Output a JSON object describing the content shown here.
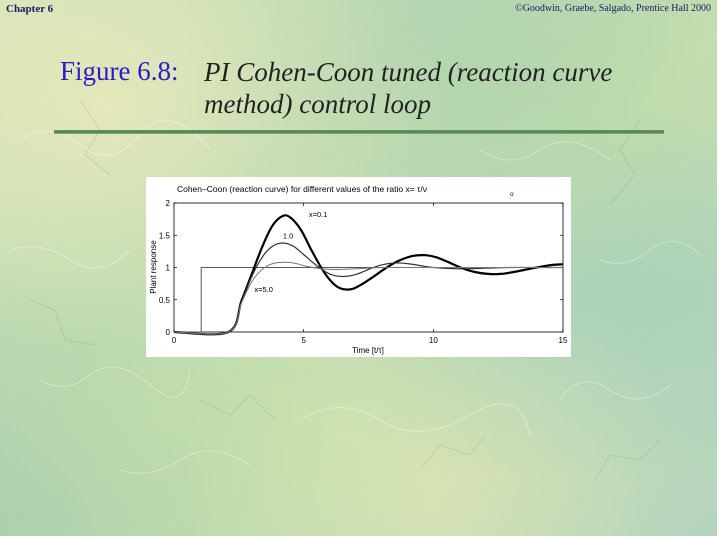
{
  "header": {
    "chapter": "Chapter 6",
    "copyright": "©Goodwin, Graebe, Salgado, Prentice Hall 2000"
  },
  "figure": {
    "label": "Figure 6.8:",
    "caption_line1": "PI Cohen-Coon tuned (reaction curve",
    "caption_line2": "method) control loop"
  },
  "colors": {
    "label": "#2a1cc8",
    "rule": "#4d7d4d"
  },
  "chart_data": {
    "type": "line",
    "title": "Cohen–Coon (reaction curve)  for different values of the ratio  x= τ/ν",
    "title_subscript": "o",
    "xlabel": "Time [t/τ]",
    "ylabel": "Plant response",
    "xlim": [
      0,
      15
    ],
    "ylim": [
      0,
      2
    ],
    "xticks": [
      0,
      5,
      10,
      15
    ],
    "xticklabels": [
      "0",
      "5",
      "10",
      "15"
    ],
    "yticks": [
      0,
      0.5,
      1,
      1.5,
      2
    ],
    "yticklabels": [
      "0",
      "0.5",
      "1",
      "1.5",
      "2"
    ],
    "grid": false,
    "series": [
      {
        "name": "setpoint",
        "color": "#555555",
        "width": 1,
        "x": [
          0,
          1.05,
          1.05,
          15
        ],
        "y": [
          0,
          0,
          1.0,
          1.0
        ]
      },
      {
        "name": "x=0.1",
        "color": "#000000",
        "width": 2.2,
        "x": [
          0,
          2.1,
          2.6,
          3.0,
          3.4,
          3.8,
          4.2,
          4.5,
          4.9,
          5.3,
          5.8,
          6.3,
          6.8,
          7.2,
          7.7,
          8.2,
          8.7,
          9.2,
          9.7,
          10.1,
          10.6,
          11.1,
          11.6,
          12.1,
          12.6,
          13.1,
          13.6,
          14.1,
          14.6,
          15.0
        ],
        "y": [
          0,
          0,
          0.48,
          0.9,
          1.32,
          1.65,
          1.8,
          1.77,
          1.58,
          1.27,
          0.92,
          0.7,
          0.66,
          0.73,
          0.86,
          1.0,
          1.11,
          1.18,
          1.19,
          1.16,
          1.08,
          0.99,
          0.93,
          0.9,
          0.9,
          0.93,
          0.97,
          1.01,
          1.04,
          1.05
        ]
      },
      {
        "name": "1.0",
        "color": "#333333",
        "width": 1.2,
        "x": [
          0,
          2.1,
          2.6,
          3.0,
          3.4,
          3.8,
          4.2,
          4.6,
          5.0,
          5.5,
          6.0,
          6.5,
          7.0,
          7.5,
          8.0,
          8.5,
          9.0,
          9.5,
          10.0,
          11.0,
          12.0,
          13.0,
          14.0,
          15.0
        ],
        "y": [
          0,
          0,
          0.46,
          0.86,
          1.16,
          1.33,
          1.38,
          1.33,
          1.2,
          1.03,
          0.9,
          0.86,
          0.89,
          0.97,
          1.04,
          1.07,
          1.06,
          1.03,
          1.0,
          0.98,
          0.99,
          1.0,
          1.0,
          1.0
        ]
      },
      {
        "name": "x=5.0",
        "color": "#777777",
        "width": 1,
        "x": [
          0,
          2.1,
          2.6,
          3.0,
          3.4,
          3.8,
          4.2,
          4.6,
          5.0,
          5.5,
          6.0,
          6.5,
          7.0,
          7.5,
          8.0,
          9.0,
          10.0,
          11.0,
          12.0,
          13.0,
          14.0,
          15.0
        ],
        "y": [
          0,
          0,
          0.45,
          0.78,
          0.97,
          1.06,
          1.08,
          1.07,
          1.03,
          0.99,
          0.97,
          0.97,
          0.98,
          0.99,
          1.0,
          1.0,
          1.0,
          1.0,
          1.0,
          1.0,
          1.0,
          1.0
        ]
      }
    ],
    "annotations": [
      {
        "text": "x=0.1",
        "x": 5.2,
        "y": 1.78
      },
      {
        "text": "1.0",
        "x": 4.2,
        "y": 1.45
      },
      {
        "text": "x=5.0",
        "x": 3.1,
        "y": 0.62
      }
    ]
  }
}
